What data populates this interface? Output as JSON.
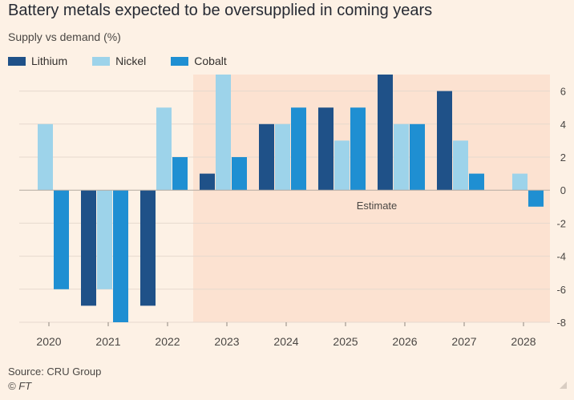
{
  "header": {
    "title": "Battery metals expected to be oversupplied in coming years",
    "subtitle": "Supply vs demand (%)"
  },
  "footer": {
    "source": "Source: CRU Group",
    "copyright": "© FT"
  },
  "colors": {
    "Lithium": "#1f5188",
    "Nickel": "#9dd3ea",
    "Cobalt": "#1f8fd2",
    "estimate_band": "#fce2d1",
    "grid": "#e6d9ce",
    "zero_line": "#b3aaa2"
  },
  "chart_data": {
    "type": "bar",
    "title": "Battery metals expected to be oversupplied in coming years",
    "subtitle": "Supply vs demand (%)",
    "xlabel": "",
    "ylabel": "Supply vs demand (%)",
    "categories": [
      "2020",
      "2021",
      "2022",
      "2023",
      "2024",
      "2025",
      "2026",
      "2027",
      "2028"
    ],
    "series": [
      {
        "name": "Lithium",
        "values": [
          null,
          -7,
          -7,
          1,
          4,
          5,
          7,
          6,
          null
        ]
      },
      {
        "name": "Nickel",
        "values": [
          4,
          -6,
          5,
          7,
          4,
          3,
          4,
          3,
          1
        ]
      },
      {
        "name": "Cobalt",
        "values": [
          -6,
          -8,
          2,
          2,
          5,
          5,
          4,
          1,
          -1
        ]
      }
    ],
    "ylim": [
      -8,
      7
    ],
    "yticks": [
      6,
      4,
      2,
      0,
      -2,
      -4,
      -6,
      -8
    ],
    "ytick_labels": [
      "6",
      "4",
      "2",
      "0",
      "-2",
      "-4",
      "-6",
      "-8"
    ],
    "legend_position": "top-left",
    "grid": true,
    "annotation": {
      "label": "Estimate",
      "from_category": "2023",
      "to_category": "2028"
    }
  }
}
